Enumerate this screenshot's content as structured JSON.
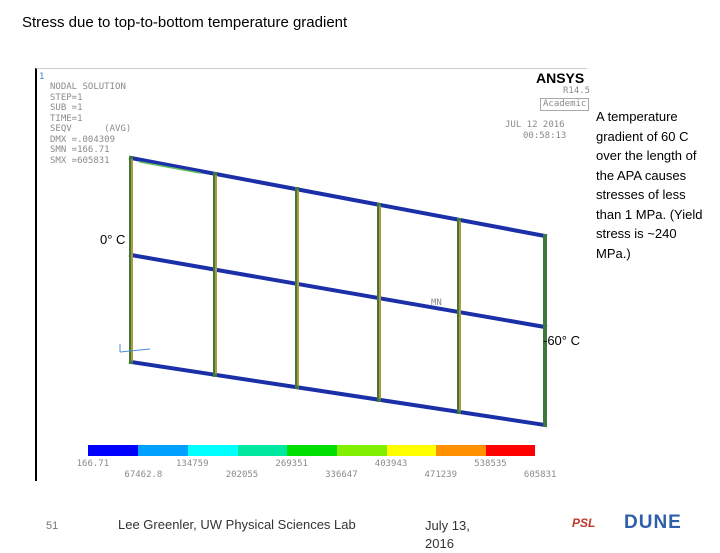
{
  "title": "Stress due to top-to-bottom temperature gradient",
  "plot": {
    "number": "1",
    "lines": [
      "NODAL SOLUTION",
      "STEP=1",
      "SUB =1",
      "TIME=1",
      "SEQV      (AVG)",
      "DMX =.004309",
      "SMN =166.71",
      "SMX =605831"
    ],
    "brand": "ANSYS",
    "version": "R14.5",
    "edition": "Academic",
    "date": "JUL 12 2016",
    "time": "00:58:13",
    "min_marker": "MN",
    "legend": [
      "166.71",
      "67462.8",
      "134759",
      "202055",
      "269351",
      "336647",
      "403943",
      "471239",
      "538535",
      "605831"
    ]
  },
  "annotations": {
    "top_temp": "0° C",
    "bottom_temp": "-60° C"
  },
  "note": "A temperature gradient of 60 C over the length of the APA causes stresses of less than 1 MPa.  (Yield stress is ~240 MPa.)",
  "footer": {
    "page": "51",
    "author": "Lee Greenler, UW Physical Sciences Lab",
    "date": "July 13, 2016",
    "logos": [
      "PSL",
      "DUNE"
    ]
  }
}
